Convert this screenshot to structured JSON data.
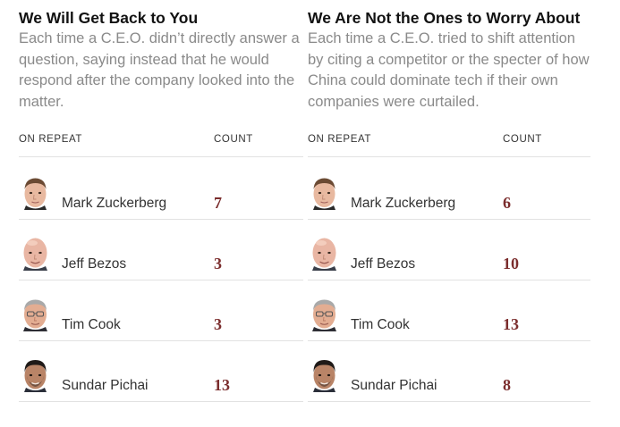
{
  "panels": [
    {
      "title": "We Will Get Back to You",
      "description": "Each time a C.E.O. didn’t directly answer a question, saying instead that he would respond after the company looked into the matter.",
      "col_name": "ON REPEAT",
      "col_count": "COUNT",
      "rows": [
        {
          "name": "Mark Zuckerberg",
          "count": "7",
          "icon": "mark-zuckerberg-avatar-icon"
        },
        {
          "name": "Jeff Bezos",
          "count": "3",
          "icon": "jeff-bezos-avatar-icon"
        },
        {
          "name": "Tim Cook",
          "count": "3",
          "icon": "tim-cook-avatar-icon"
        },
        {
          "name": "Sundar Pichai",
          "count": "13",
          "icon": "sundar-pichai-avatar-icon"
        }
      ]
    },
    {
      "title": "We Are Not the Ones to Worry About",
      "description": "Each time a C.E.O. tried to shift attention by citing a competitor or the specter of how China could dominate tech if their own companies were curtailed.",
      "col_name": "ON REPEAT",
      "col_count": "COUNT",
      "rows": [
        {
          "name": "Mark Zuckerberg",
          "count": "6",
          "icon": "mark-zuckerberg-avatar-icon"
        },
        {
          "name": "Jeff Bezos",
          "count": "10",
          "icon": "jeff-bezos-avatar-icon"
        },
        {
          "name": "Tim Cook",
          "count": "13",
          "icon": "tim-cook-avatar-icon"
        },
        {
          "name": "Sundar Pichai",
          "count": "8",
          "icon": "sundar-pichai-avatar-icon"
        }
      ]
    }
  ],
  "colors": {
    "count": "#7b2d2d",
    "description": "#8a8a8a",
    "divider": "#e2e2e2"
  }
}
